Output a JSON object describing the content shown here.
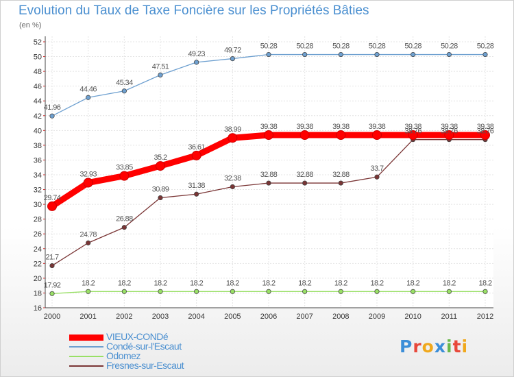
{
  "header": {
    "title": "Evolution du Taux de Taxe Foncière sur les Propriétés Bâties",
    "subtitle": "(en %)"
  },
  "logo": {
    "text": "Proxiti",
    "colors": [
      "#3c8ed8",
      "#e8483a",
      "#f0a81c",
      "#3c8ed8",
      "#6ab84a",
      "#e8483a",
      "#f0a81c"
    ]
  },
  "chart_data": {
    "type": "line",
    "title": "Evolution du Taux de Taxe Foncière sur les Propriétés Bâties",
    "ylabel": "(en %)",
    "xlabel": "",
    "x": [
      "2000",
      "2001",
      "2002",
      "2003",
      "2004",
      "2005",
      "2006",
      "2007",
      "2008",
      "2009",
      "2010",
      "2011",
      "2012"
    ],
    "ylim": [
      16,
      52
    ],
    "yticks": [
      16,
      18,
      20,
      22,
      24,
      26,
      28,
      30,
      32,
      34,
      36,
      38,
      40,
      42,
      44,
      46,
      48,
      50,
      52
    ],
    "grid": true,
    "legend_position": "bottom-left",
    "series": [
      {
        "name": "VIEUX-CONDé",
        "color": "#ff0000",
        "emphasis": true,
        "values": [
          29.74,
          32.93,
          33.85,
          35.2,
          36.61,
          38.99,
          39.38,
          39.38,
          39.38,
          39.38,
          39.38,
          39.38,
          39.38
        ],
        "labels": [
          "29.74",
          "32.93",
          "33.85",
          "35.2",
          "36.61",
          "38.99",
          "39.38",
          "39.38",
          "39.38",
          "39.38",
          "39.38",
          "39.38",
          "39.38"
        ]
      },
      {
        "name": "Condé-sur-l'Escaut",
        "color": "#6ea0d0",
        "values": [
          41.96,
          44.46,
          45.34,
          47.51,
          49.23,
          49.72,
          50.28,
          50.28,
          50.28,
          50.28,
          50.28,
          50.28,
          50.28
        ],
        "labels": [
          "41.96",
          "44.46",
          "45.34",
          "47.51",
          "49.23",
          "49.72",
          "50.28",
          "50.28",
          "50.28",
          "50.28",
          "50.28",
          "50.28",
          "50.28"
        ]
      },
      {
        "name": "Odomez",
        "color": "#99e066",
        "values": [
          17.92,
          18.2,
          18.2,
          18.2,
          18.2,
          18.2,
          18.2,
          18.2,
          18.2,
          18.2,
          18.2,
          18.2,
          18.2
        ],
        "labels": [
          "17.92",
          "18.2",
          "18.2",
          "18.2",
          "18.2",
          "18.2",
          "18.2",
          "18.2",
          "18.2",
          "18.2",
          "18.2",
          "18.2",
          "18.2"
        ]
      },
      {
        "name": "Fresnes-sur-Escaut",
        "color": "#7a3535",
        "values": [
          21.7,
          24.78,
          26.88,
          30.89,
          31.38,
          32.38,
          32.88,
          32.88,
          32.88,
          33.7,
          38.76,
          38.76,
          38.76
        ],
        "labels": [
          "21.7",
          "24.78",
          "26.88",
          "30.89",
          "31.38",
          "32.38",
          "32.88",
          "32.88",
          "32.88",
          "33.7",
          "38.76",
          "38.76",
          "38.76"
        ]
      }
    ]
  }
}
